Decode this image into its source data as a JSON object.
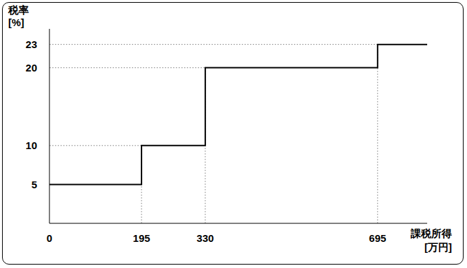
{
  "chart_data": {
    "type": "step",
    "xlabel": "課税所得\n[万円]",
    "ylabel": "税率\n[%]",
    "x": [
      0,
      195,
      330,
      695
    ],
    "values": [
      5,
      10,
      20,
      23
    ],
    "color": "#000000",
    "xlim": [
      0,
      800
    ],
    "xticks": [
      0,
      195,
      330,
      695
    ],
    "ylim": [
      0,
      25
    ],
    "yticks": [
      5,
      10,
      20,
      23
    ],
    "grid": true
  }
}
